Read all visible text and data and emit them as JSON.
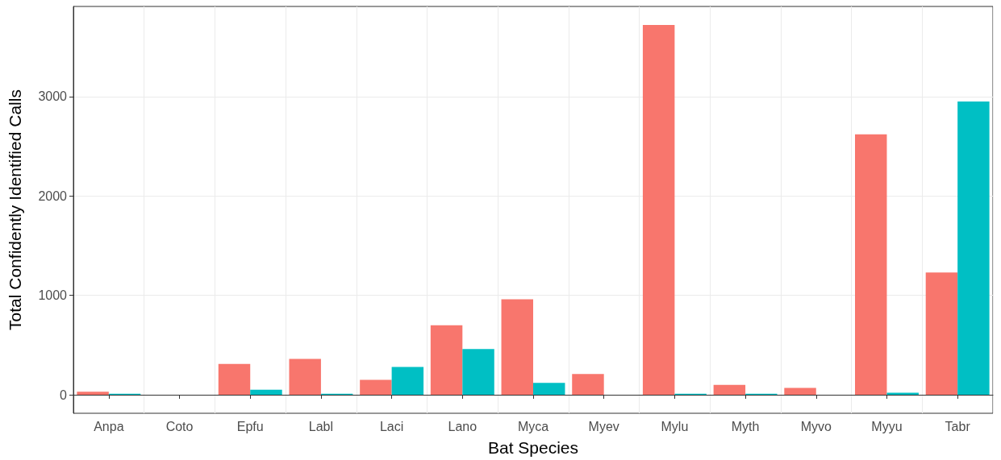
{
  "chart_data": {
    "type": "bar",
    "xlabel": "Bat Species",
    "ylabel": "Total Confidently Identified Calls",
    "categories": [
      "Anpa",
      "Coto",
      "Epfu",
      "Labl",
      "Laci",
      "Lano",
      "Myca",
      "Myev",
      "Mylu",
      "Myth",
      "Myvo",
      "Myyu",
      "Tabr"
    ],
    "series": [
      {
        "color": "#f8766d",
        "values": [
          30,
          0,
          310,
          360,
          150,
          700,
          960,
          210,
          3720,
          100,
          70,
          2620,
          1230
        ]
      },
      {
        "color": "#00bfc4",
        "values": [
          10,
          0,
          50,
          10,
          280,
          460,
          120,
          0,
          10,
          10,
          0,
          20,
          2950
        ]
      }
    ],
    "ylim": [
      -186,
      3906
    ],
    "yticks": [
      0,
      1000,
      2000,
      3000
    ],
    "grid": true
  }
}
